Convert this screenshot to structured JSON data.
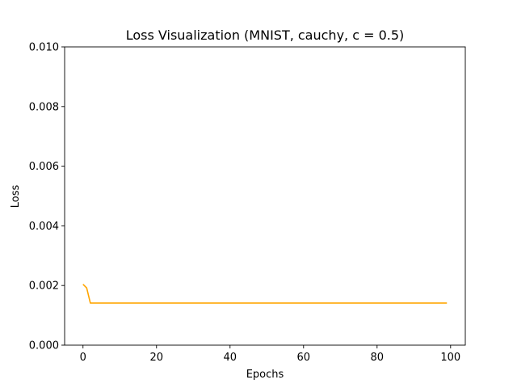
{
  "chart_data": {
    "type": "line",
    "title": "Loss Visualization (MNIST, cauchy, c = 0.5)",
    "xlabel": "Epochs",
    "ylabel": "Loss",
    "xlim": [
      -5,
      104
    ],
    "ylim": [
      0.0,
      0.01
    ],
    "xticks": [
      0,
      20,
      40,
      60,
      80,
      100
    ],
    "xtick_labels": [
      "0",
      "20",
      "40",
      "60",
      "80",
      "100"
    ],
    "yticks": [
      0.0,
      0.002,
      0.004,
      0.006,
      0.008,
      0.01
    ],
    "ytick_labels": [
      "0.000",
      "0.002",
      "0.004",
      "0.006",
      "0.008",
      "0.010"
    ],
    "grid": false,
    "series": [
      {
        "color": "#ffa500",
        "x": [
          0,
          1,
          2,
          5,
          10,
          20,
          30,
          40,
          50,
          60,
          70,
          80,
          90,
          99
        ],
        "y": [
          0.00204,
          0.00192,
          0.00141,
          0.00141,
          0.00141,
          0.00141,
          0.00141,
          0.00141,
          0.00141,
          0.00141,
          0.00141,
          0.00141,
          0.00141,
          0.00141
        ]
      }
    ]
  }
}
